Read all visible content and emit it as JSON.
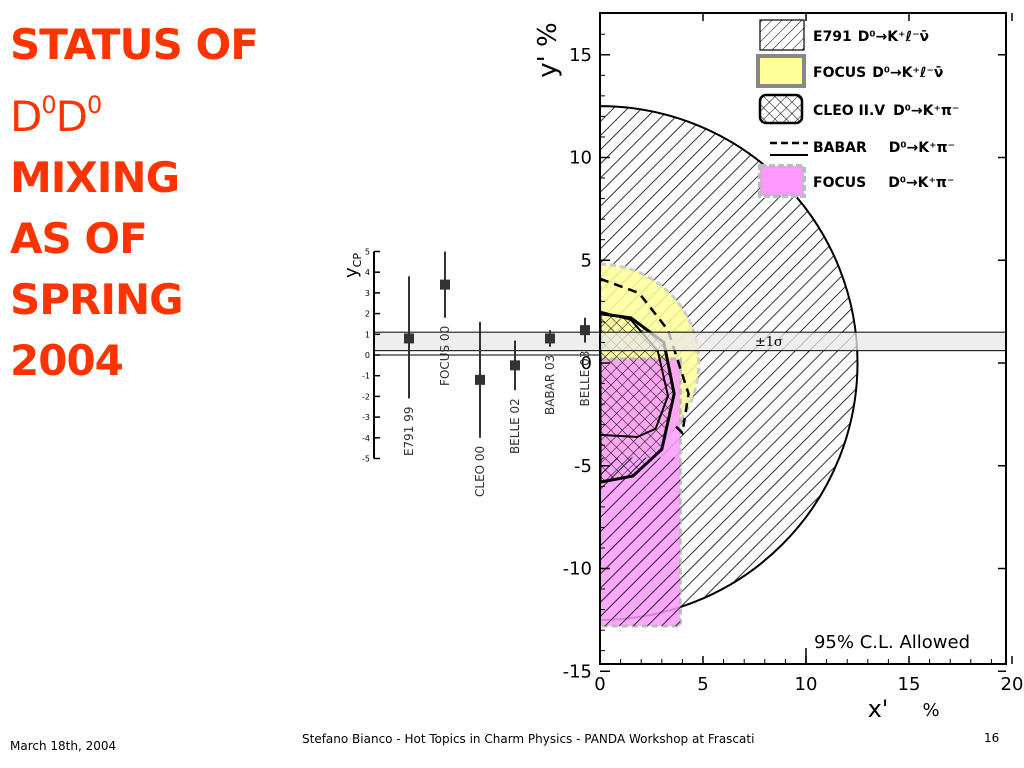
{
  "slide": {
    "title_line1": "STATUS OF",
    "title_d1": "D",
    "title_sup1": "0",
    "title_d2": "D",
    "title_sup2": "0",
    "title_line3": "MIXING",
    "title_line4": "AS OF",
    "title_line5": "SPRING",
    "title_line6": "2004",
    "accent_color": "#ff3300"
  },
  "footer": {
    "date": "March 18th, 2004",
    "credit": "Stefano Bianco - Hot Topics in Charm Physics - PANDA Workshop at Frascati",
    "page": "16"
  },
  "chart_data": [
    {
      "type": "scatter",
      "title": "",
      "ylabel_main": "y",
      "ylabel_sub": "CP",
      "ylim": [
        -5,
        5
      ],
      "yticks": [
        "5",
        "4",
        "3",
        "2",
        "1",
        "0",
        "-1",
        "-2",
        "-3",
        "-4",
        "-5"
      ],
      "band_label": "±1σ",
      "band": [
        0.6,
        1.5
      ],
      "points": [
        {
          "label": "E791 99",
          "y": 0.8,
          "err_hi": 3.8,
          "err_lo": -2.1
        },
        {
          "label": "FOCUS 00",
          "y": 3.4,
          "err_hi": 5.0,
          "err_lo": 1.8
        },
        {
          "label": "CLEO 00",
          "y": -1.2,
          "err_hi": 1.6,
          "err_lo": -4.0
        },
        {
          "label": "BELLE 02",
          "y": -0.5,
          "err_hi": 0.7,
          "err_lo": -1.7
        },
        {
          "label": "BABAR 03",
          "y": 0.8,
          "err_hi": 1.2,
          "err_lo": 0.4
        },
        {
          "label": "BELLE 03",
          "y": 1.2,
          "err_hi": 1.8,
          "err_lo": 0.6
        }
      ]
    },
    {
      "type": "area",
      "xlabel": "x'",
      "xunit": "%",
      "ylabel": "y' %",
      "xlim": [
        0,
        20
      ],
      "ylim": [
        -15,
        16
      ],
      "xticks": [
        "0",
        "5",
        "10",
        "15",
        "20"
      ],
      "yticks": [
        "15",
        "10",
        "5",
        "0",
        "-5",
        "-10",
        "-15"
      ],
      "annotation": "95% C.L. Allowed",
      "legend_position": "top-right",
      "legend": [
        {
          "experiment": "E791",
          "decay": "D⁰→K⁺ℓ⁻ν̄",
          "style": "hatched"
        },
        {
          "experiment": "FOCUS",
          "decay": "D⁰→K⁺ℓ⁻ν̄",
          "style": "yellow-fill"
        },
        {
          "experiment": "CLEO II.V",
          "decay": "D⁰→K⁺π⁻",
          "style": "cross-hatched"
        },
        {
          "experiment": "BABAR",
          "decay": "D⁰→K⁺π⁻",
          "style": "dashed-solid"
        },
        {
          "experiment": "FOCUS",
          "decay": "D⁰→K⁺π⁻",
          "style": "magenta-fill"
        }
      ],
      "regions": [
        {
          "experiment": "E791",
          "shape": "half-disk",
          "radius": 12.5,
          "color": "#000000"
        },
        {
          "experiment": "FOCUS semileptonic",
          "shape": "half-disk",
          "radius": 4.8,
          "color": "#ffff99"
        },
        {
          "experiment": "FOCUS hadronic",
          "x_max": 3.9,
          "y_range": [
            -12.8,
            0.2
          ],
          "color": "#ff99ff"
        },
        {
          "experiment": "CLEO II.V",
          "contour": [
            [
              0,
              2.4
            ],
            [
              1.5,
              2.2
            ],
            [
              3.1,
              1.0
            ],
            [
              3.6,
              -1.5
            ],
            [
              3.0,
              -4.2
            ],
            [
              1.6,
              -5.5
            ],
            [
              0,
              -5.8
            ]
          ]
        },
        {
          "experiment": "BABAR",
          "contour": [
            [
              0,
              4.1
            ],
            [
              1.9,
              3.4
            ],
            [
              3.3,
              1.6
            ],
            [
              4.3,
              -1.5
            ],
            [
              4.0,
              -3.4
            ],
            [
              3.6,
              -3.0
            ]
          ]
        }
      ],
      "band_label": "±1σ",
      "band_y": [
        0.6,
        1.5
      ],
      "legend_colors": {
        "yellow": "#ffff99",
        "magenta": "#ff99ff",
        "band": "#e8e8e8"
      }
    }
  ]
}
